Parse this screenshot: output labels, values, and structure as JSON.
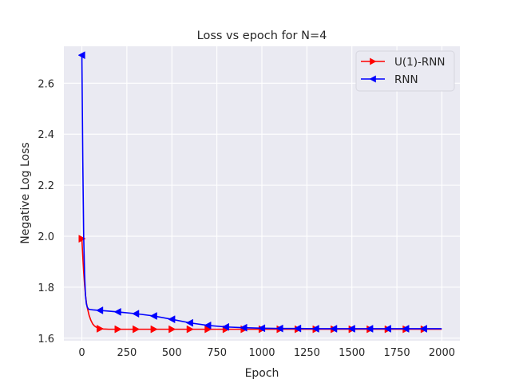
{
  "chart_data": {
    "type": "line",
    "title": "Loss vs epoch for N=4",
    "xlabel": "Epoch",
    "ylabel": "Negative Log Loss",
    "xlim": [
      -100,
      2100
    ],
    "ylim": [
      1.59,
      2.745
    ],
    "xticks": [
      0,
      250,
      500,
      750,
      1000,
      1250,
      1500,
      1750,
      2000
    ],
    "yticks": [
      1.6,
      1.8,
      2.0,
      2.2,
      2.4,
      2.6
    ],
    "ytick_labels": [
      "1.6",
      "1.8",
      "2.0",
      "2.2",
      "2.4",
      "2.6"
    ],
    "grid": true,
    "legend_position": "top-right",
    "background": "#eaeaf2",
    "series": [
      {
        "name": "U(1)-RNN",
        "color": "#ff0000",
        "marker": "triangle-right",
        "marker_every": 100,
        "x": [
          0,
          5,
          10,
          15,
          20,
          25,
          30,
          40,
          50,
          60,
          70,
          80,
          90,
          100,
          120,
          150,
          200,
          300,
          400,
          500,
          600,
          700,
          800,
          900,
          1000,
          1100,
          1200,
          1300,
          1400,
          1500,
          1600,
          1700,
          1800,
          1900,
          1999
        ],
        "y": [
          1.99,
          1.92,
          1.86,
          1.81,
          1.77,
          1.74,
          1.72,
          1.69,
          1.67,
          1.656,
          1.648,
          1.643,
          1.64,
          1.637,
          1.636,
          1.635,
          1.635,
          1.635,
          1.635,
          1.635,
          1.635,
          1.635,
          1.635,
          1.635,
          1.635,
          1.635,
          1.635,
          1.635,
          1.635,
          1.635,
          1.635,
          1.635,
          1.635,
          1.635,
          1.635
        ]
      },
      {
        "name": "RNN",
        "color": "#0000ff",
        "marker": "triangle-left",
        "marker_every": 100,
        "x": [
          0,
          5,
          10,
          15,
          20,
          25,
          30,
          35,
          40,
          50,
          60,
          80,
          100,
          150,
          200,
          300,
          400,
          500,
          600,
          700,
          800,
          900,
          1000,
          1100,
          1200,
          1300,
          1400,
          1500,
          1600,
          1700,
          1800,
          1900,
          1999
        ],
        "y": [
          2.71,
          2.3,
          2.0,
          1.85,
          1.77,
          1.735,
          1.722,
          1.716,
          1.713,
          1.712,
          1.711,
          1.71,
          1.709,
          1.706,
          1.703,
          1.696,
          1.687,
          1.674,
          1.66,
          1.65,
          1.644,
          1.641,
          1.639,
          1.638,
          1.638,
          1.637,
          1.637,
          1.637,
          1.637,
          1.637,
          1.637,
          1.637,
          1.637
        ]
      }
    ]
  }
}
